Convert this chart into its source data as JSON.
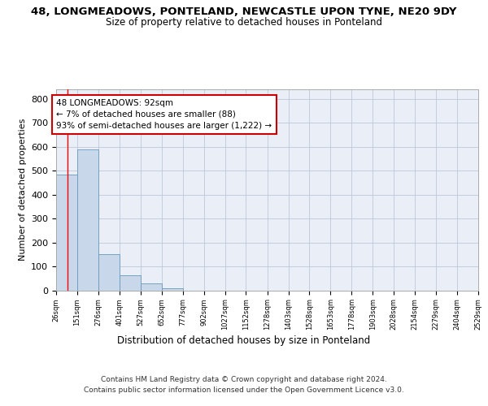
{
  "title": "48, LONGMEADOWS, PONTELAND, NEWCASTLE UPON TYNE, NE20 9DY",
  "subtitle": "Size of property relative to detached houses in Ponteland",
  "xlabel": "Distribution of detached houses by size in Ponteland",
  "ylabel": "Number of detached properties",
  "bar_values": [
    485,
    590,
    150,
    62,
    30,
    10,
    0,
    0,
    0,
    0,
    0,
    0,
    0,
    0,
    0,
    0,
    0,
    0,
    0,
    0
  ],
  "bin_edges": [
    26,
    151,
    276,
    401,
    527,
    652,
    777,
    902,
    1027,
    1152,
    1278,
    1403,
    1528,
    1653,
    1778,
    1903,
    2028,
    2154,
    2279,
    2404,
    2529
  ],
  "bar_color": "#c8d8ea",
  "bar_edgecolor": "#6699bb",
  "grid_color": "#c0c8d8",
  "bg_color": "#eaeff7",
  "red_line_x": 92,
  "annotation_text": "48 LONGMEADOWS: 92sqm\n← 7% of detached houses are smaller (88)\n93% of semi-detached houses are larger (1,222) →",
  "annotation_box_color": "#ffffff",
  "annotation_border_color": "#cc0000",
  "ylim": [
    0,
    840
  ],
  "yticks": [
    0,
    100,
    200,
    300,
    400,
    500,
    600,
    700,
    800
  ],
  "footer_line1": "Contains HM Land Registry data © Crown copyright and database right 2024.",
  "footer_line2": "Contains public sector information licensed under the Open Government Licence v3.0."
}
